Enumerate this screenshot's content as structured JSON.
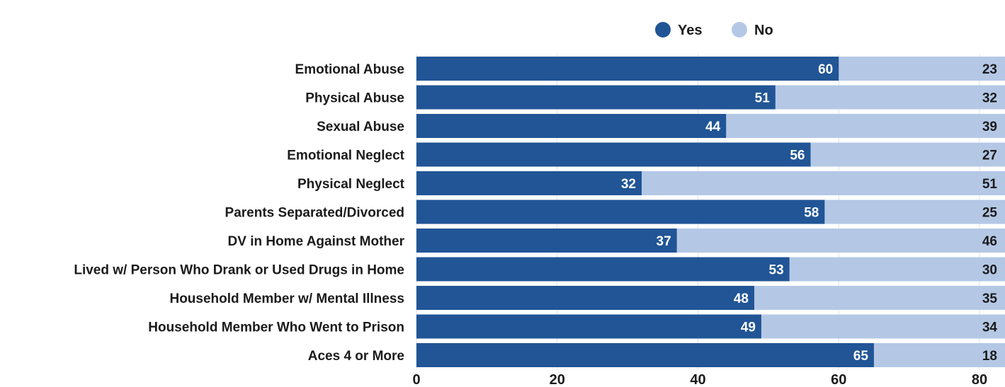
{
  "chart_data": {
    "type": "bar",
    "orientation": "horizontal",
    "stacked": true,
    "categories": [
      "Emotional Abuse",
      "Physical Abuse",
      "Sexual Abuse",
      "Emotional Neglect",
      "Physical Neglect",
      "Parents Separated/Divorced",
      "DV in Home Against Mother",
      "Lived w/ Person Who Drank or Used Drugs in Home",
      "Household Member w/ Mental Illness",
      "Household Member Who Went to Prison",
      "Aces 4 or More"
    ],
    "series": [
      {
        "name": "Yes",
        "color": "#215596",
        "values": [
          60,
          51,
          44,
          56,
          32,
          58,
          37,
          53,
          48,
          49,
          65
        ]
      },
      {
        "name": "No",
        "color": "#b4c8e6",
        "values": [
          23,
          32,
          39,
          27,
          51,
          25,
          46,
          30,
          35,
          34,
          18
        ]
      }
    ],
    "xlim": [
      0,
      80
    ],
    "xticks": [
      0,
      20,
      40,
      60,
      80
    ],
    "grid": true,
    "legend_position": "top-center",
    "title": "",
    "xlabel": "",
    "ylabel": ""
  }
}
